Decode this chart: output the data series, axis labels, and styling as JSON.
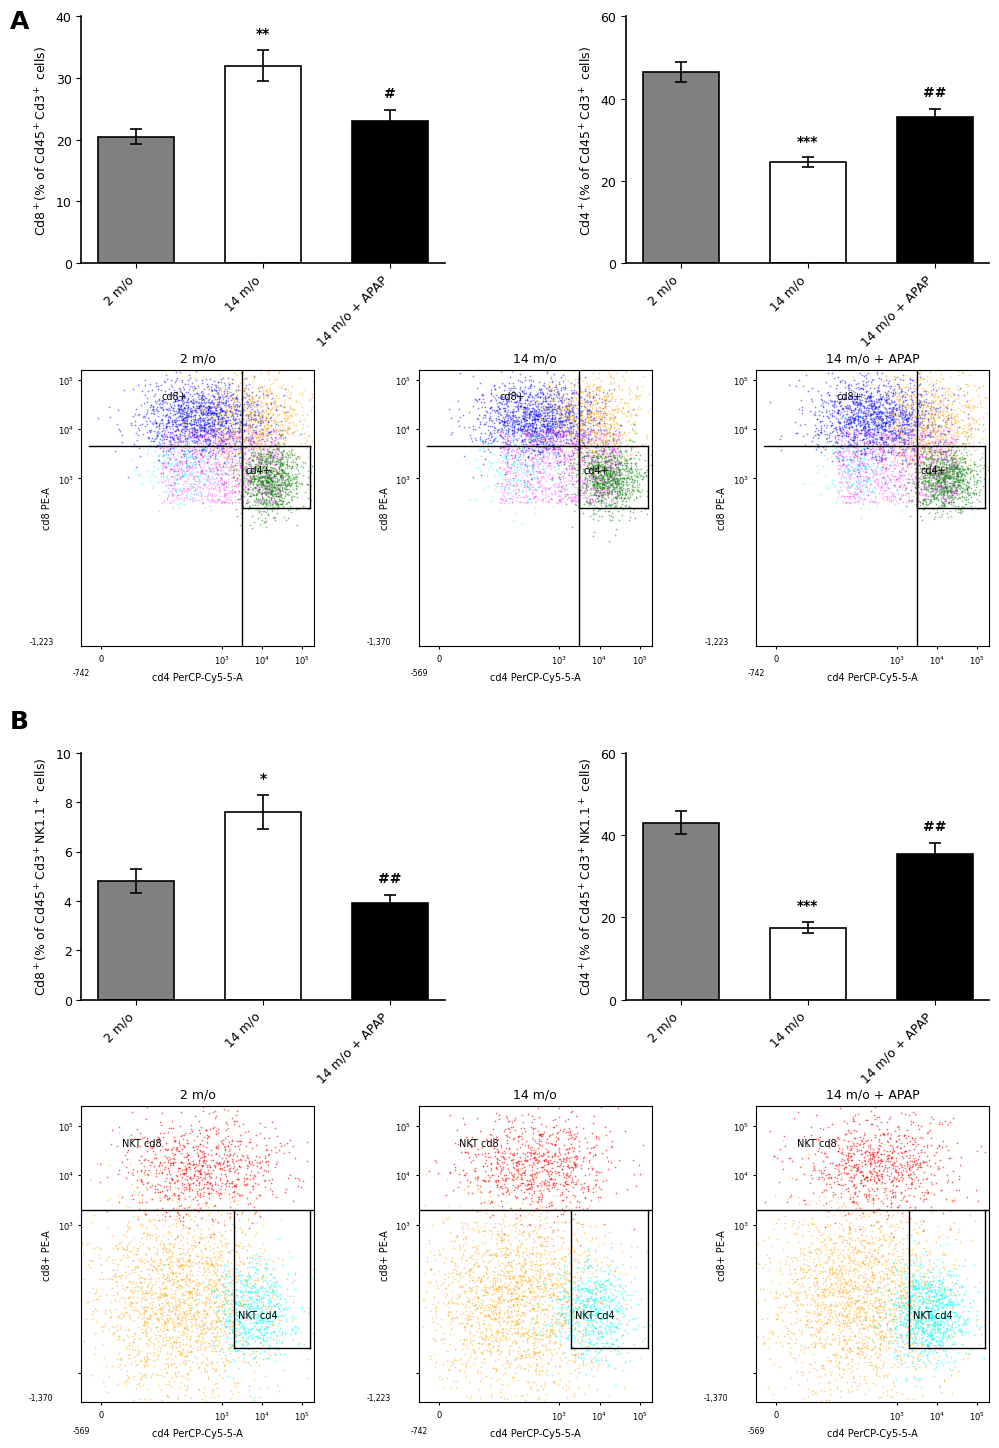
{
  "panel_A_cd8": {
    "values": [
      20.5,
      32.0,
      23.0
    ],
    "errors": [
      1.2,
      2.5,
      1.8
    ],
    "colors": [
      "#808080",
      "#ffffff",
      "#000000"
    ],
    "edge_colors": [
      "#000000",
      "#000000",
      "#000000"
    ],
    "categories": [
      "2 m/o",
      "14 m/o",
      "14 m/o + APAP"
    ],
    "ylabel": "Cd8$^+$(% of Cd45$^+$Cd3$^+$ cells)",
    "ylim": [
      0,
      40
    ],
    "yticks": [
      0,
      10,
      20,
      30,
      40
    ],
    "significance_bar2": "**",
    "significance_bar3": "#"
  },
  "panel_A_cd4": {
    "values": [
      46.5,
      24.5,
      35.5
    ],
    "errors": [
      2.5,
      1.2,
      2.0
    ],
    "colors": [
      "#808080",
      "#ffffff",
      "#000000"
    ],
    "edge_colors": [
      "#000000",
      "#000000",
      "#000000"
    ],
    "categories": [
      "2 m/o",
      "14 m/o",
      "14 m/o + APAP"
    ],
    "ylabel": "Cd4$^+$(% of Cd45$^+$Cd3$^+$ cells)",
    "ylim": [
      0,
      60
    ],
    "yticks": [
      0,
      20,
      40,
      60
    ],
    "significance_bar2": "***",
    "significance_bar3": "##"
  },
  "panel_B_cd8": {
    "values": [
      4.8,
      7.6,
      3.9
    ],
    "errors": [
      0.5,
      0.7,
      0.35
    ],
    "colors": [
      "#808080",
      "#ffffff",
      "#000000"
    ],
    "edge_colors": [
      "#000000",
      "#000000",
      "#000000"
    ],
    "categories": [
      "2 m/o",
      "14 m/o",
      "14 m/o + APAP"
    ],
    "ylabel": "Cd8$^+$(% of Cd45$^+$Cd3$^+$NK1.1$^+$ cells)",
    "ylim": [
      0,
      10
    ],
    "yticks": [
      0,
      2,
      4,
      6,
      8,
      10
    ],
    "significance_bar2": "*",
    "significance_bar3": "##"
  },
  "panel_B_cd4": {
    "values": [
      43.0,
      17.5,
      35.5
    ],
    "errors": [
      2.8,
      1.3,
      2.5
    ],
    "colors": [
      "#808080",
      "#ffffff",
      "#000000"
    ],
    "edge_colors": [
      "#000000",
      "#000000",
      "#000000"
    ],
    "categories": [
      "2 m/o",
      "14 m/o",
      "14 m/o + APAP"
    ],
    "ylabel": "Cd4$^+$(% of Cd45$^+$Cd3$^+$NK1.1$^+$ cells)",
    "ylim": [
      0,
      60
    ],
    "yticks": [
      0,
      20,
      40,
      60
    ],
    "significance_bar2": "***",
    "significance_bar3": "##"
  },
  "flow_A_xlabels": [
    "-742",
    "-569",
    "-742"
  ],
  "flow_A_ylabels": [
    "-1,223",
    "-1,370",
    "-1,223"
  ],
  "flow_B_xlabels": [
    "-569",
    "-742",
    "-569"
  ],
  "flow_B_ylabels": [
    "-1,370",
    "-1,223",
    "-1,370"
  ],
  "flow_titles_A": [
    "2 m/o",
    "14 m/o",
    "14 m/o + APAP"
  ],
  "flow_titles_B": [
    "2 m/o",
    "14 m/o",
    "14 m/o + APAP"
  ],
  "flow_xlabel": "cd4 PerCP-Cy5-5-A",
  "flow_ylabel_A": "cd8 PE-A",
  "flow_ylabel_B": "cd8+ PE-A",
  "background_color": "#ffffff",
  "label_A": "A",
  "label_B": "B"
}
